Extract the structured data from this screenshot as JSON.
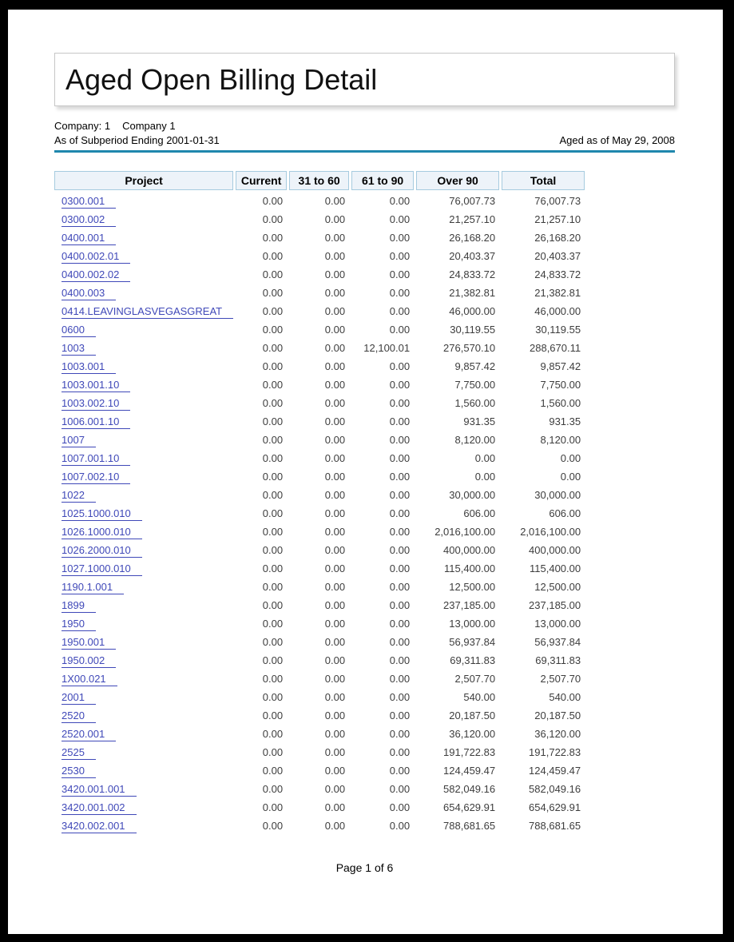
{
  "report": {
    "title": "Aged Open Billing Detail",
    "company_label": "Company: 1",
    "company_name": "Company 1",
    "subperiod_line": "As of Subperiod Ending 2001-01-31",
    "aged_as_of": "Aged as of May 29, 2008",
    "page_footer": "Page 1 of 6"
  },
  "colors": {
    "accent_rule": "#1f87ad",
    "header_bg": "#edf3f9",
    "header_border": "#a6cbdf",
    "link": "#3f48b8",
    "body_text": "#3d3d3d",
    "frame": "#000000"
  },
  "table": {
    "columns": [
      "Project",
      "Current",
      "31 to 60",
      "61 to 90",
      "Over 90",
      "Total"
    ],
    "rows": [
      [
        "0300.001",
        "0.00",
        "0.00",
        "0.00",
        "76,007.73",
        "76,007.73"
      ],
      [
        "0300.002",
        "0.00",
        "0.00",
        "0.00",
        "21,257.10",
        "21,257.10"
      ],
      [
        "0400.001",
        "0.00",
        "0.00",
        "0.00",
        "26,168.20",
        "26,168.20"
      ],
      [
        "0400.002.01",
        "0.00",
        "0.00",
        "0.00",
        "20,403.37",
        "20,403.37"
      ],
      [
        "0400.002.02",
        "0.00",
        "0.00",
        "0.00",
        "24,833.72",
        "24,833.72"
      ],
      [
        "0400.003",
        "0.00",
        "0.00",
        "0.00",
        "21,382.81",
        "21,382.81"
      ],
      [
        "0414.LEAVINGLASVEGASGREAT",
        "0.00",
        "0.00",
        "0.00",
        "46,000.00",
        "46,000.00"
      ],
      [
        "0600",
        "0.00",
        "0.00",
        "0.00",
        "30,119.55",
        "30,119.55"
      ],
      [
        "1003",
        "0.00",
        "0.00",
        "12,100.01",
        "276,570.10",
        "288,670.11"
      ],
      [
        "1003.001",
        "0.00",
        "0.00",
        "0.00",
        "9,857.42",
        "9,857.42"
      ],
      [
        "1003.001.10",
        "0.00",
        "0.00",
        "0.00",
        "7,750.00",
        "7,750.00"
      ],
      [
        "1003.002.10",
        "0.00",
        "0.00",
        "0.00",
        "1,560.00",
        "1,560.00"
      ],
      [
        "1006.001.10",
        "0.00",
        "0.00",
        "0.00",
        "931.35",
        "931.35"
      ],
      [
        "1007",
        "0.00",
        "0.00",
        "0.00",
        "8,120.00",
        "8,120.00"
      ],
      [
        "1007.001.10",
        "0.00",
        "0.00",
        "0.00",
        "0.00",
        "0.00"
      ],
      [
        "1007.002.10",
        "0.00",
        "0.00",
        "0.00",
        "0.00",
        "0.00"
      ],
      [
        "1022",
        "0.00",
        "0.00",
        "0.00",
        "30,000.00",
        "30,000.00"
      ],
      [
        "1025.1000.010",
        "0.00",
        "0.00",
        "0.00",
        "606.00",
        "606.00"
      ],
      [
        "1026.1000.010",
        "0.00",
        "0.00",
        "0.00",
        "2,016,100.00",
        "2,016,100.00"
      ],
      [
        "1026.2000.010",
        "0.00",
        "0.00",
        "0.00",
        "400,000.00",
        "400,000.00"
      ],
      [
        "1027.1000.010",
        "0.00",
        "0.00",
        "0.00",
        "115,400.00",
        "115,400.00"
      ],
      [
        "1190.1.001",
        "0.00",
        "0.00",
        "0.00",
        "12,500.00",
        "12,500.00"
      ],
      [
        "1899",
        "0.00",
        "0.00",
        "0.00",
        "237,185.00",
        "237,185.00"
      ],
      [
        "1950",
        "0.00",
        "0.00",
        "0.00",
        "13,000.00",
        "13,000.00"
      ],
      [
        "1950.001",
        "0.00",
        "0.00",
        "0.00",
        "56,937.84",
        "56,937.84"
      ],
      [
        "1950.002",
        "0.00",
        "0.00",
        "0.00",
        "69,311.83",
        "69,311.83"
      ],
      [
        "1X00.021",
        "0.00",
        "0.00",
        "0.00",
        "2,507.70",
        "2,507.70"
      ],
      [
        "2001",
        "0.00",
        "0.00",
        "0.00",
        "540.00",
        "540.00"
      ],
      [
        "2520",
        "0.00",
        "0.00",
        "0.00",
        "20,187.50",
        "20,187.50"
      ],
      [
        "2520.001",
        "0.00",
        "0.00",
        "0.00",
        "36,120.00",
        "36,120.00"
      ],
      [
        "2525",
        "0.00",
        "0.00",
        "0.00",
        "191,722.83",
        "191,722.83"
      ],
      [
        "2530",
        "0.00",
        "0.00",
        "0.00",
        "124,459.47",
        "124,459.47"
      ],
      [
        "3420.001.001",
        "0.00",
        "0.00",
        "0.00",
        "582,049.16",
        "582,049.16"
      ],
      [
        "3420.001.002",
        "0.00",
        "0.00",
        "0.00",
        "654,629.91",
        "654,629.91"
      ],
      [
        "3420.002.001",
        "0.00",
        "0.00",
        "0.00",
        "788,681.65",
        "788,681.65"
      ]
    ]
  }
}
